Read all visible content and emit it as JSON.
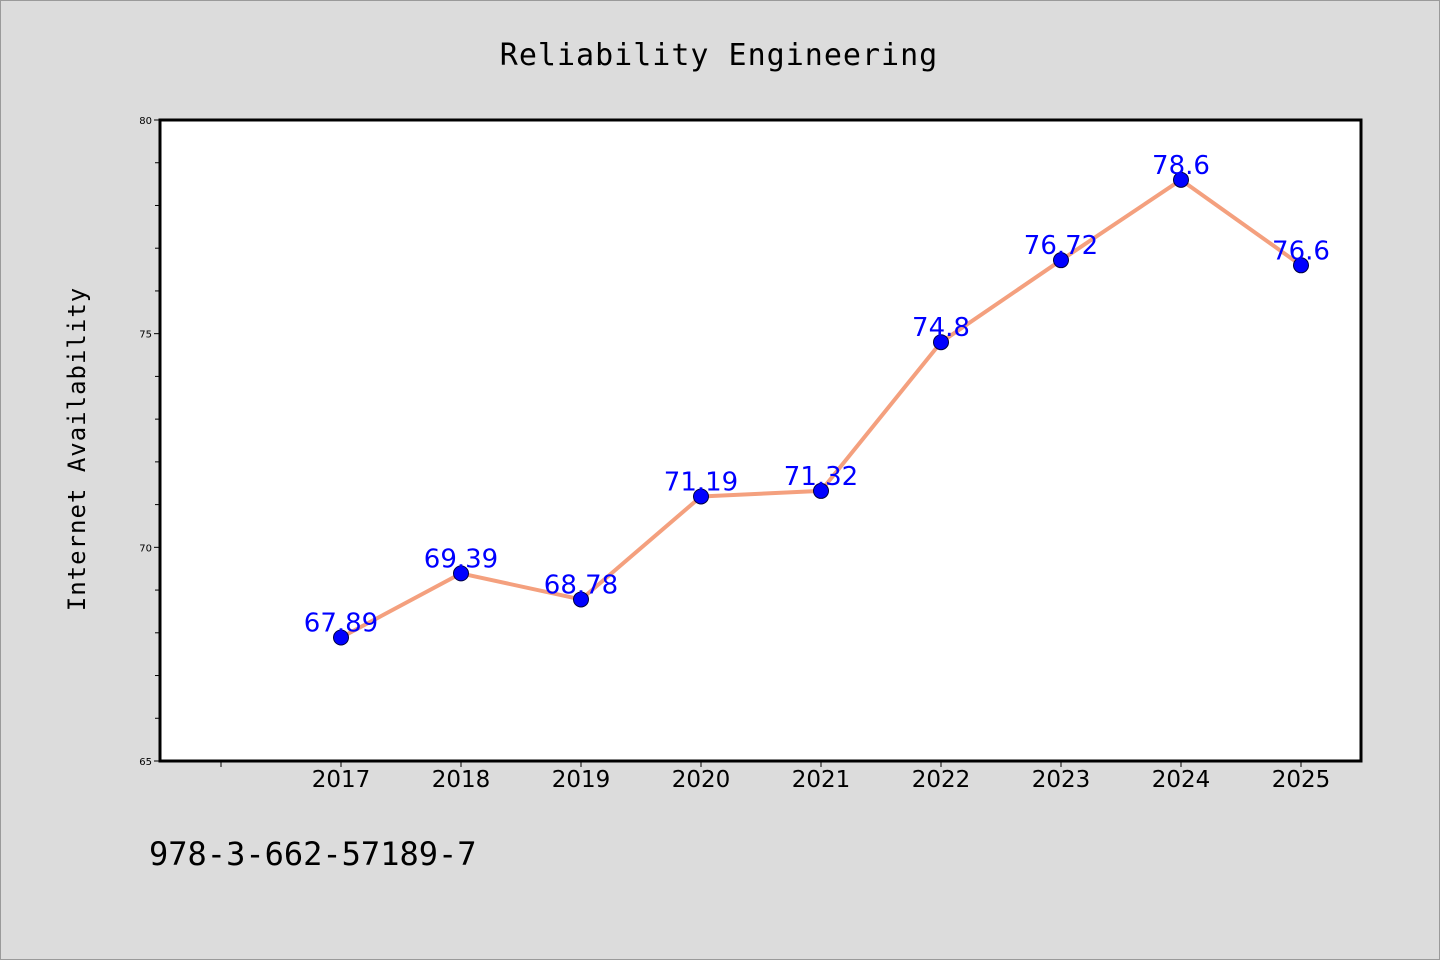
{
  "chart_data": {
    "type": "line",
    "title": "Reliability Engineering",
    "xlabel": "",
    "ylabel": "Internet Availability",
    "categories": [
      "2017",
      "2018",
      "2019",
      "2020",
      "2021",
      "2022",
      "2023",
      "2024",
      "2025"
    ],
    "series": [
      {
        "values": [
          67.89,
          69.39,
          68.78,
          71.19,
          71.32,
          74.8,
          76.72,
          78.6,
          76.6
        ],
        "line_color": "#f4a07e",
        "marker_color": "#0000ff"
      }
    ],
    "data_labels": [
      "67.89",
      "69.39",
      "68.78",
      "71.19",
      "71.32",
      "74.8",
      "76.72",
      "78.6",
      "76.6"
    ],
    "ylim": [
      65,
      80
    ],
    "y_ticks": [
      "65",
      "70",
      "75",
      "80"
    ],
    "grid": false,
    "legend": "none"
  },
  "footer": {
    "code": "978-3-662-57189-7"
  },
  "colors": {
    "background": "#dcdcdc",
    "plot_background": "#ffffff",
    "label_color": "#0000ff"
  }
}
